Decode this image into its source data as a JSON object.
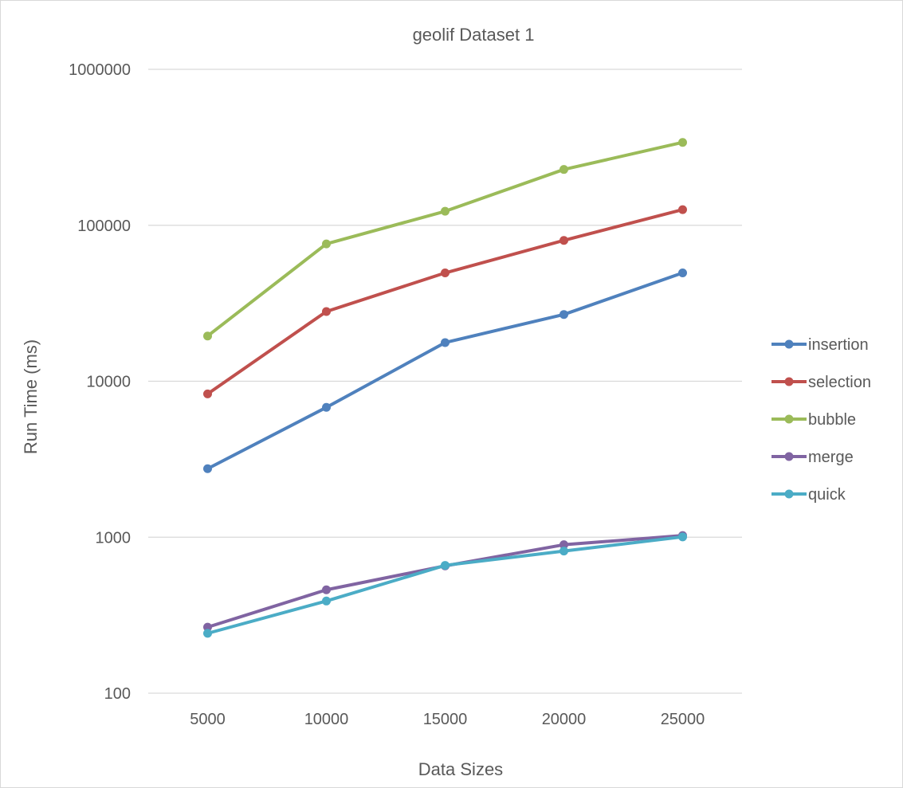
{
  "chart_data": {
    "type": "line",
    "title": "geolif Dataset 1",
    "xlabel": "Data Sizes",
    "ylabel": "Run Time (ms)",
    "yscale": "log",
    "ylim": [
      100,
      1000000
    ],
    "yticks": [
      100,
      1000,
      10000,
      100000,
      1000000
    ],
    "ytick_labels": [
      "100",
      "1000",
      "10000",
      "100000",
      "1000000"
    ],
    "categories": [
      "5000",
      "10000",
      "15000",
      "20000",
      "25000"
    ],
    "grid": true,
    "legend_position": "right",
    "series": [
      {
        "name": "insertion",
        "color": "#4F81BD",
        "values": [
          2750,
          6800,
          17700,
          26800,
          49500
        ]
      },
      {
        "name": "selection",
        "color": "#C0504D",
        "values": [
          8300,
          28000,
          49500,
          80000,
          126000
        ]
      },
      {
        "name": "bubble",
        "color": "#9BBB59",
        "values": [
          19500,
          76000,
          123000,
          228000,
          340000
        ]
      },
      {
        "name": "merge",
        "color": "#8064A2",
        "values": [
          265,
          460,
          655,
          895,
          1025
        ]
      },
      {
        "name": "quick",
        "color": "#4BACC6",
        "values": [
          242,
          390,
          660,
          815,
          1005
        ]
      }
    ]
  }
}
